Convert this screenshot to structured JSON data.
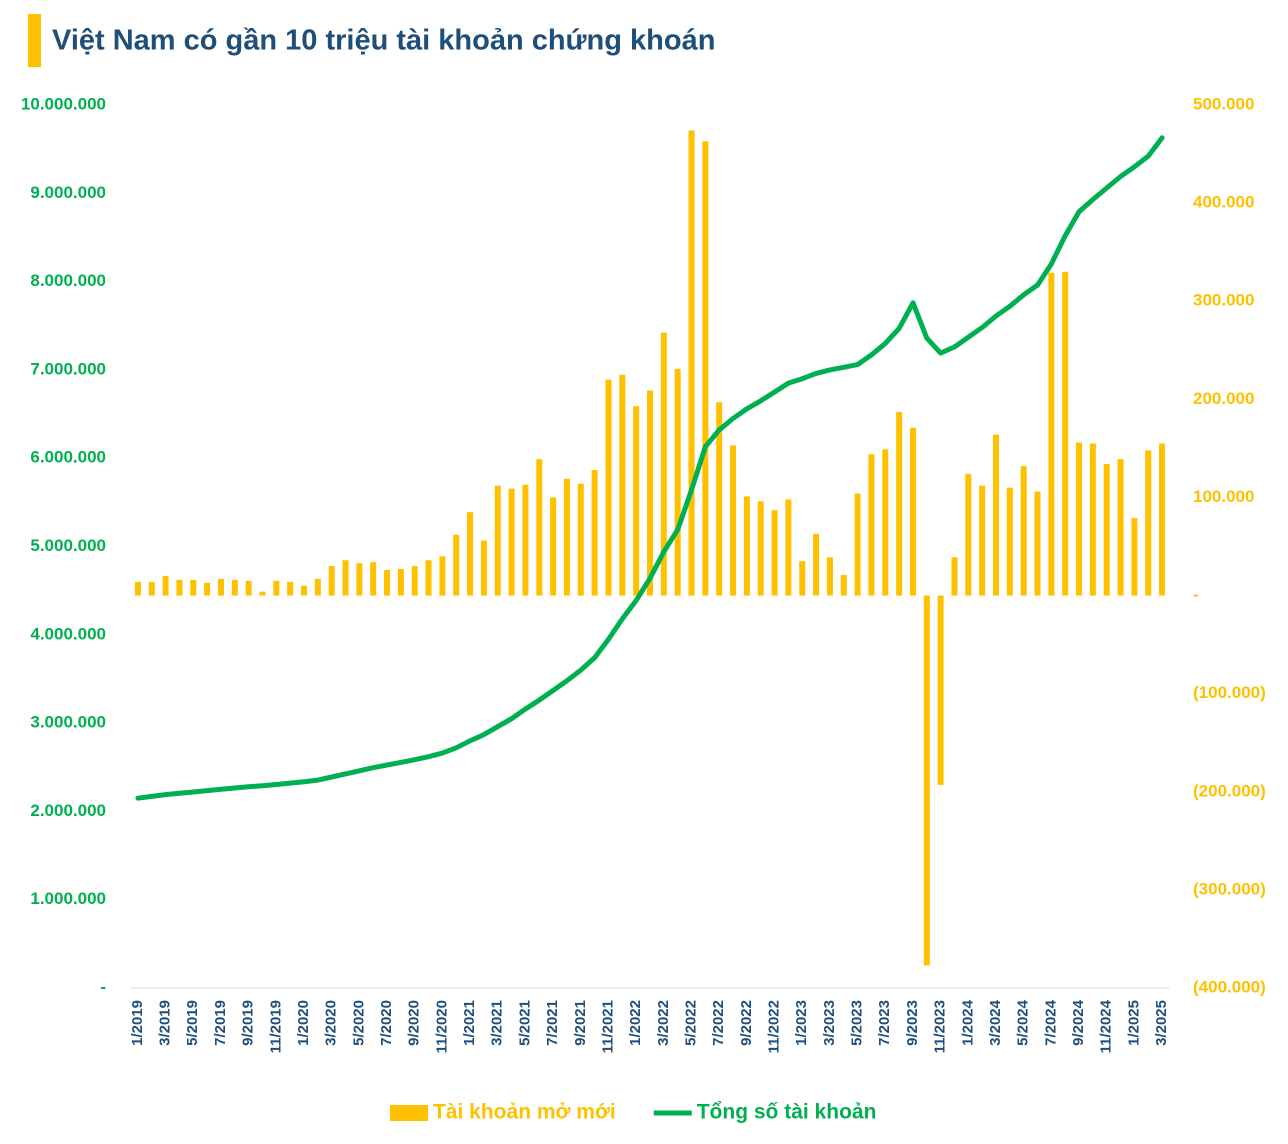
{
  "chart_data": {
    "type": "combo",
    "title": "Việt Nam có gần 10 triệu tài khoản chứng khoán",
    "categories": [
      "1/2019",
      null,
      "3/2019",
      null,
      "5/2019",
      null,
      "7/2019",
      null,
      "9/2019",
      null,
      "11/2019",
      null,
      "1/2020",
      null,
      "3/2020",
      null,
      "5/2020",
      null,
      "7/2020",
      null,
      "9/2020",
      null,
      "11/2020",
      null,
      "1/2021",
      null,
      "3/2021",
      null,
      "5/2021",
      null,
      "7/2021",
      null,
      "9/2021",
      null,
      "11/2021",
      null,
      "1/2022",
      null,
      "3/2022",
      null,
      "5/2022",
      null,
      "7/2022",
      null,
      "9/2022",
      null,
      "11/2022",
      null,
      "1/2023",
      null,
      "3/2023",
      null,
      "5/2023",
      null,
      "7/2023",
      null,
      "9/2023",
      null,
      "11/2023",
      null,
      "1/2024",
      null,
      "3/2024",
      null,
      "5/2024",
      null,
      "7/2024",
      null,
      "9/2024",
      null,
      "11/2024",
      null,
      "1/2025",
      null,
      "3/2025"
    ],
    "series": [
      {
        "name": "Tài khoản mở mới",
        "type": "bar",
        "axis": "y2",
        "color": "#ffc000",
        "values": [
          14000,
          14000,
          20000,
          16000,
          16000,
          13000,
          17000,
          16000,
          15000,
          4000,
          15000,
          14000,
          10000,
          17000,
          30000,
          36000,
          33000,
          34000,
          26000,
          27000,
          30000,
          36000,
          40000,
          62000,
          85000,
          56000,
          112000,
          109000,
          113000,
          139000,
          100000,
          119000,
          114000,
          128000,
          220000,
          225000,
          193000,
          209000,
          268000,
          231000,
          474000,
          463000,
          197000,
          153000,
          101000,
          96000,
          87000,
          98000,
          35000,
          63000,
          39000,
          21000,
          104000,
          144000,
          149000,
          187000,
          171000,
          -377000,
          -193000,
          39000,
          124000,
          112000,
          164000,
          110000,
          132000,
          106000,
          329000,
          330000,
          156000,
          155000,
          134000,
          139000,
          79000,
          148000,
          155000
        ]
      },
      {
        "name": "Tổng số tài khoản",
        "type": "line",
        "color": "#00b050",
        "values": [
          2150000,
          2170000,
          2190000,
          2205000,
          2220000,
          2235000,
          2250000,
          2265000,
          2280000,
          2290000,
          2305000,
          2320000,
          2335000,
          2355000,
          2390000,
          2425000,
          2460000,
          2495000,
          2525000,
          2555000,
          2585000,
          2620000,
          2660000,
          2720000,
          2800000,
          2870000,
          2960000,
          3050000,
          3160000,
          3260000,
          3370000,
          3480000,
          3600000,
          3740000,
          3950000,
          4180000,
          4390000,
          4640000,
          4940000,
          5190000,
          5640000,
          6130000,
          6320000,
          6450000,
          6560000,
          6650000,
          6750000,
          6850000,
          6900000,
          6960000,
          7000000,
          7030000,
          7060000,
          7170000,
          7300000,
          7470000,
          7760000,
          7360000,
          7190000,
          7260000,
          7370000,
          7480000,
          7610000,
          7720000,
          7850000,
          7960000,
          8200000,
          8520000,
          8790000,
          8930000,
          9060000,
          9190000,
          9300000,
          9420000,
          9630000
        ]
      }
    ],
    "ylim": [
      0,
      10000000
    ],
    "yticks": [
      {
        "value": 0,
        "label": "-"
      },
      {
        "value": 1000000,
        "label": "1.000.000"
      },
      {
        "value": 2000000,
        "label": "2.000.000"
      },
      {
        "value": 3000000,
        "label": "3.000.000"
      },
      {
        "value": 4000000,
        "label": "4.000.000"
      },
      {
        "value": 5000000,
        "label": "5.000.000"
      },
      {
        "value": 6000000,
        "label": "6.000.000"
      },
      {
        "value": 7000000,
        "label": "7.000.000"
      },
      {
        "value": 8000000,
        "label": "8.000.000"
      },
      {
        "value": 9000000,
        "label": "9.000.000"
      },
      {
        "value": 10000000,
        "label": "10.000.000"
      }
    ],
    "y2lim": [
      -400000,
      500000
    ],
    "y2ticks": [
      {
        "value": -400000,
        "label": "(400.000)"
      },
      {
        "value": -300000,
        "label": "(300.000)"
      },
      {
        "value": -200000,
        "label": "(200.000)"
      },
      {
        "value": -100000,
        "label": "(100.000)"
      },
      {
        "value": 0,
        "label": "-"
      },
      {
        "value": 100000,
        "label": "100.000"
      },
      {
        "value": 200000,
        "label": "200.000"
      },
      {
        "value": 300000,
        "label": "300.000"
      },
      {
        "value": 400000,
        "label": "400.000"
      },
      {
        "value": 500000,
        "label": "500.000"
      }
    ],
    "legend": "bottom"
  }
}
